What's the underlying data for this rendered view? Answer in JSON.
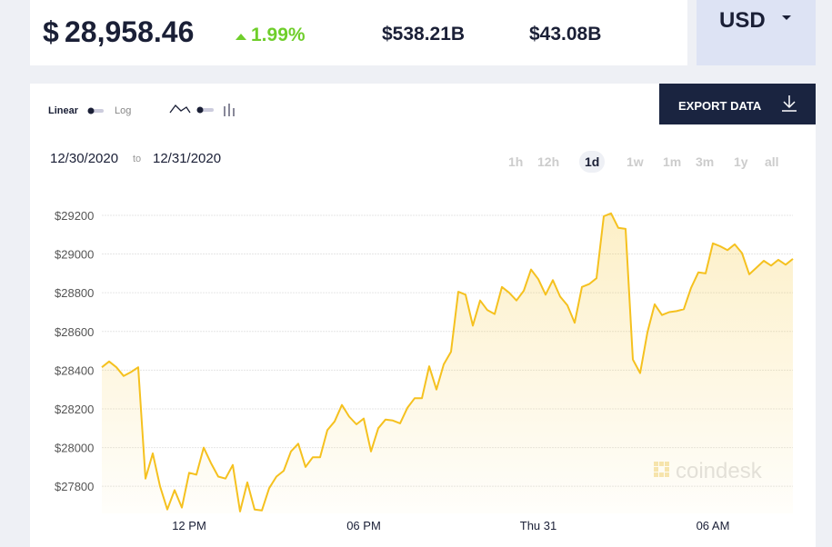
{
  "header": {
    "price_symbol": "$",
    "price": "28,958.46",
    "change": "1.99%",
    "market_cap": "$538.21B",
    "volume": "$43.08B",
    "currency": "USD"
  },
  "controls": {
    "linear": "Linear",
    "log": "Log",
    "export": "EXPORT DATA",
    "date_from": "12/30/2020",
    "date_sep": "to",
    "date_to": "12/31/2020",
    "ranges": [
      "1h",
      "12h",
      "1d",
      "1w",
      "1m",
      "3m",
      "1y",
      "all"
    ],
    "selected_range": 2
  },
  "watermark": "coindesk",
  "chart_data": {
    "type": "line",
    "color": "#f5c11f",
    "log_scale": false,
    "grid": true,
    "categories": [
      null,
      null,
      null,
      null,
      null,
      null,
      null,
      null,
      null,
      null,
      null,
      null,
      "12 PM",
      null,
      null,
      null,
      null,
      null,
      null,
      null,
      null,
      null,
      null,
      null,
      null,
      null,
      null,
      null,
      null,
      null,
      null,
      null,
      null,
      null,
      null,
      null,
      "06 PM",
      null,
      null,
      null,
      null,
      null,
      null,
      null,
      null,
      null,
      null,
      null,
      null,
      null,
      null,
      null,
      null,
      null,
      null,
      null,
      null,
      null,
      null,
      null,
      "Thu 31",
      null,
      null,
      null,
      null,
      null,
      null,
      null,
      null,
      null,
      null,
      null,
      null,
      null,
      null,
      null,
      null,
      null,
      null,
      null,
      null,
      null,
      null,
      null,
      "06 AM",
      null,
      null,
      null,
      null,
      null,
      null,
      null,
      null,
      null,
      null,
      null
    ],
    "values": [
      28415,
      28445,
      28415,
      28370,
      28390,
      28415,
      27840,
      27970,
      27800,
      27680,
      27780,
      27690,
      27870,
      27860,
      28000,
      27920,
      27850,
      27840,
      27910,
      27670,
      27820,
      27680,
      27675,
      27790,
      27850,
      27880,
      27980,
      28020,
      27900,
      27950,
      27950,
      28090,
      28135,
      28220,
      28160,
      28120,
      28150,
      27980,
      28100,
      28145,
      28140,
      28125,
      28205,
      28255,
      28255,
      28420,
      28300,
      28430,
      28495,
      28805,
      28790,
      28630,
      28760,
      28710,
      28690,
      28830,
      28800,
      28760,
      28810,
      28920,
      28870,
      28790,
      28865,
      28780,
      28735,
      28645,
      28830,
      28845,
      28875,
      29195,
      29210,
      29135,
      29130,
      28455,
      28385,
      28595,
      28740,
      28685,
      28700,
      28705,
      28715,
      28825,
      28905,
      28900,
      29055,
      29040,
      29020,
      29050,
      29005,
      28895,
      28930,
      28965,
      28940,
      28970,
      28945,
      28975
    ],
    "ylim": [
      27660,
      29350
    ],
    "yticks": [
      {
        "value": 27800,
        "label": "$27800"
      },
      {
        "value": 28000,
        "label": "$28000"
      },
      {
        "value": 28200,
        "label": "$28200"
      },
      {
        "value": 28400,
        "label": "$28400"
      },
      {
        "value": 28600,
        "label": "$28600"
      },
      {
        "value": 28800,
        "label": "$28800"
      },
      {
        "value": 29000,
        "label": "$29000"
      },
      {
        "value": 29200,
        "label": "$29200"
      }
    ]
  }
}
